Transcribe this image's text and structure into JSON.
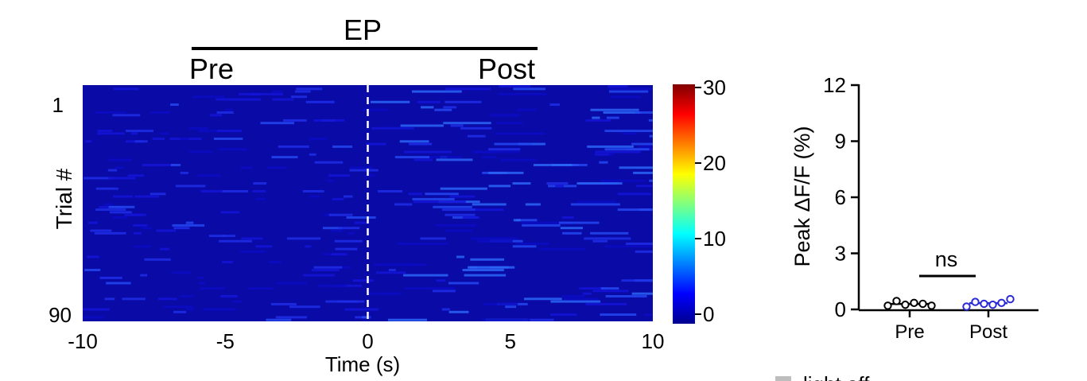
{
  "chart_data": [
    {
      "type": "heatmap",
      "group_title": "EP",
      "period_labels": [
        "Pre",
        "Post"
      ],
      "xlabel": "Time (s)",
      "ylabel": "Trial #",
      "xlim": [
        -10,
        10
      ],
      "x_ticks": [
        "-10",
        "-5",
        "0",
        "5",
        "10"
      ],
      "y_ticks": [
        "1",
        "90"
      ],
      "n_trials": 90,
      "colorbar": {
        "min": 0,
        "max": 30,
        "ticks": [
          "0",
          "10",
          "20",
          "30"
        ],
        "colormap": "jet"
      },
      "event_marker_time": 0
    },
    {
      "type": "scatter",
      "ylabel": "Peak ΔF/F (%)",
      "ylim": [
        0,
        12
      ],
      "y_ticks": [
        "0",
        "3",
        "6",
        "9",
        "12"
      ],
      "categories": [
        "Pre",
        "Post"
      ],
      "significance": "ns",
      "series": [
        {
          "category": "Pre",
          "color": "#000000",
          "values": [
            0.2,
            0.45,
            0.25,
            0.35,
            0.3,
            0.2
          ]
        },
        {
          "category": "Post",
          "color": "#2a2ad6",
          "values": [
            0.15,
            0.4,
            0.3,
            0.25,
            0.35,
            0.55
          ]
        }
      ]
    }
  ],
  "legend_partial": "light off"
}
